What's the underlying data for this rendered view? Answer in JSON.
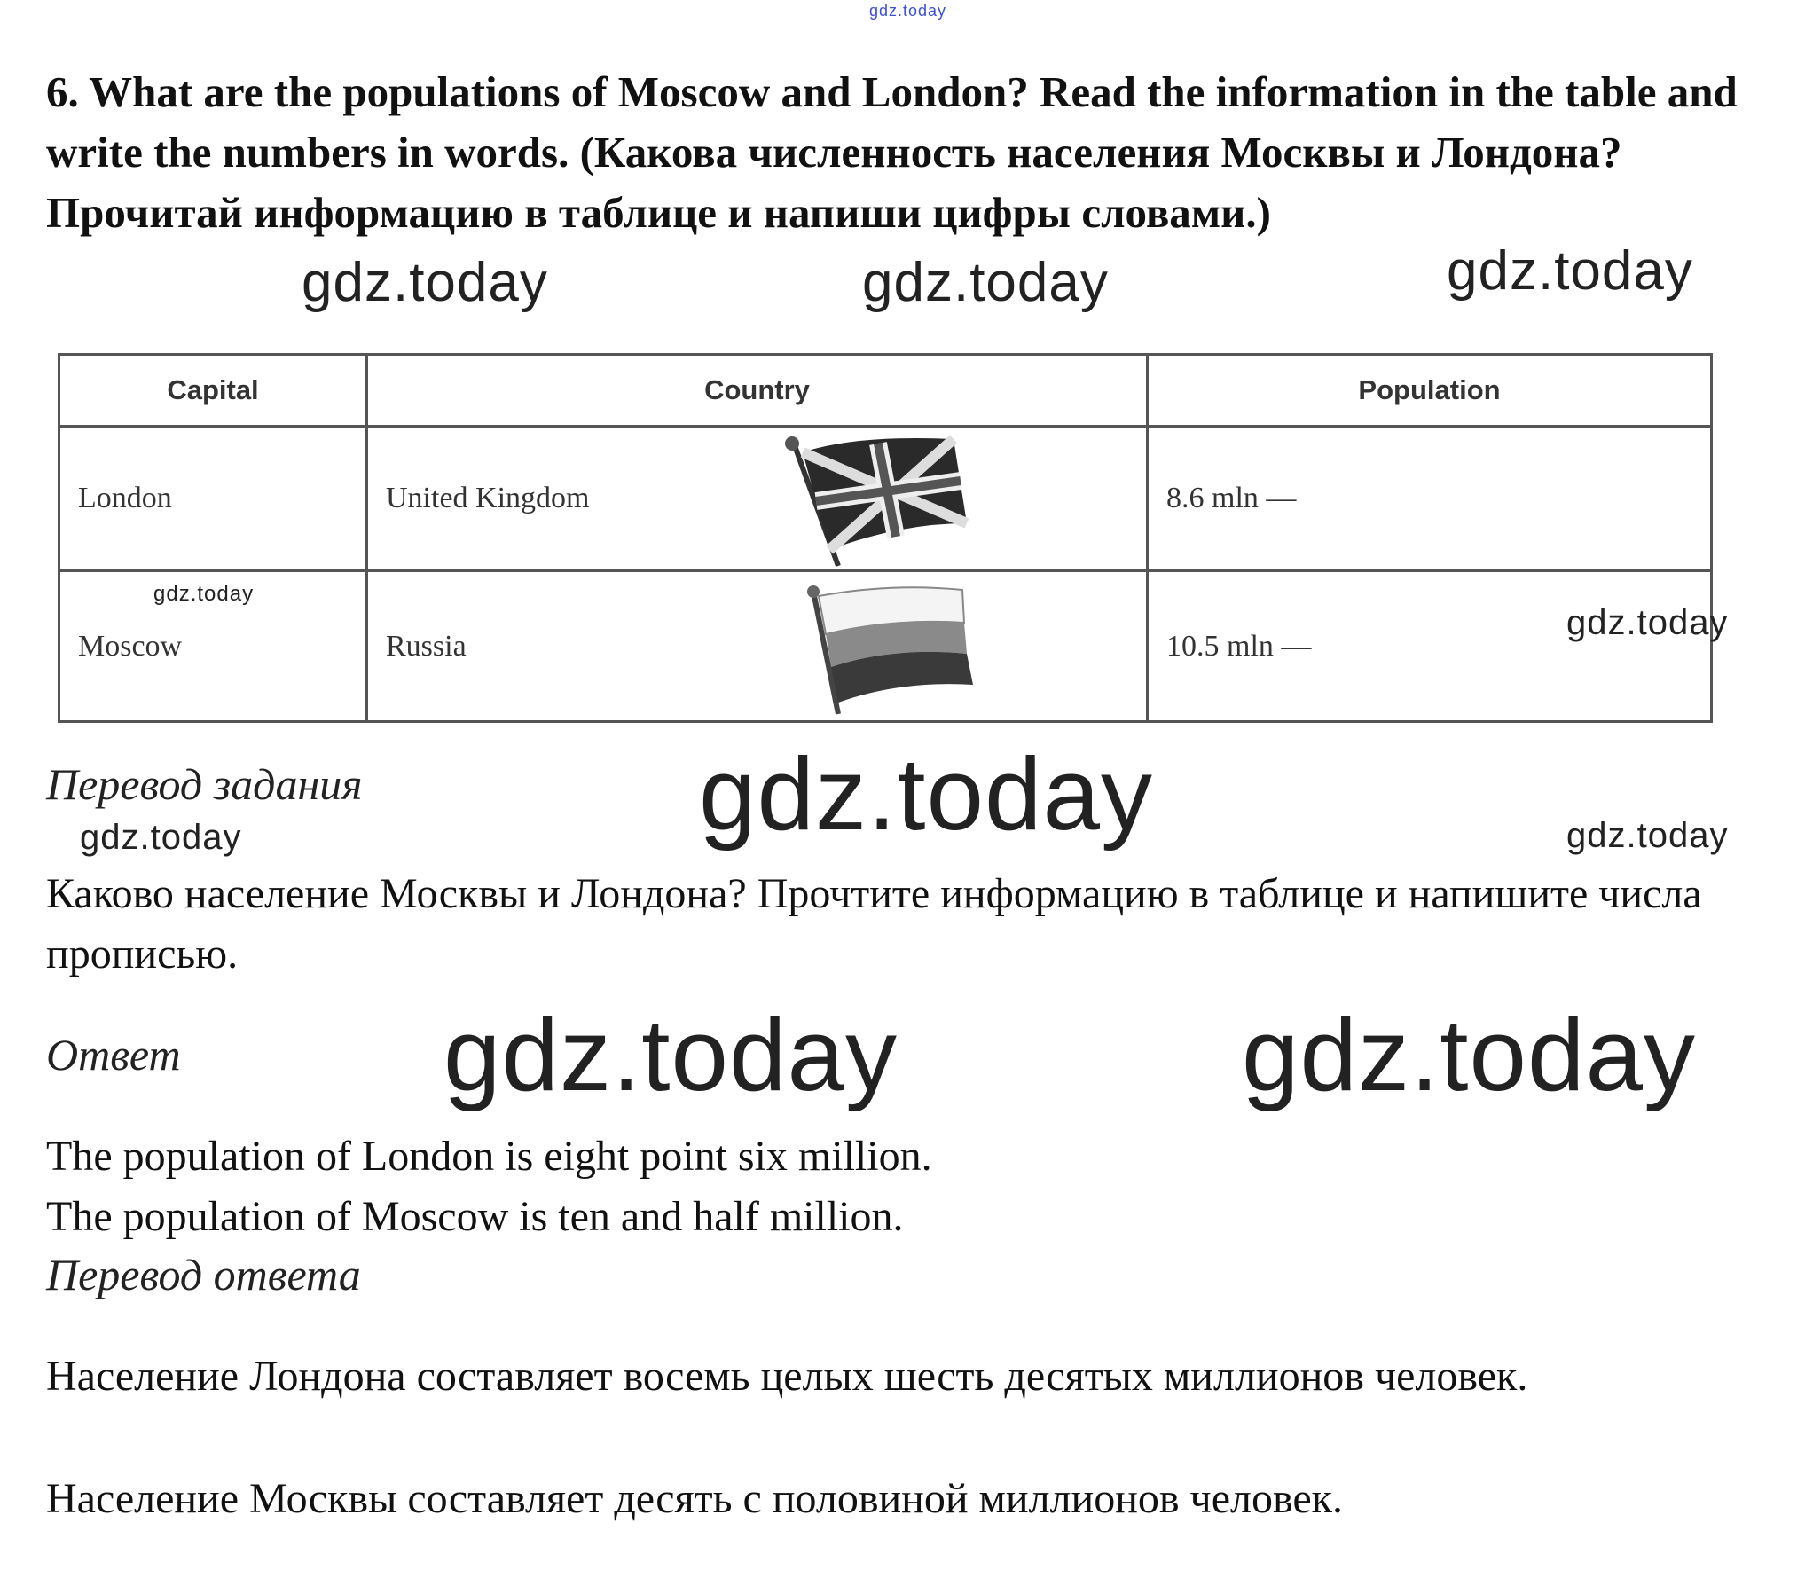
{
  "watermarks": {
    "top": "gdz.today",
    "text": "gdz.today"
  },
  "task": {
    "heading": "6. What are the populations of Moscow and London? Read the information in the table and write the numbers in words. (Какова численность населения Москвы и Лондона? Прочитай информацию в таблице и напиши цифры словами.)"
  },
  "table": {
    "headers": [
      "Capital",
      "Country",
      "Population"
    ],
    "rows": [
      {
        "capital": "London",
        "country": "United Kingdom",
        "population": "8.6 mln —",
        "flag": "uk-flag"
      },
      {
        "capital": "Moscow",
        "country": "Russia",
        "population": "10.5 mln —",
        "flag": "russia-flag"
      }
    ]
  },
  "translation": {
    "title": "Перевод задания",
    "text": "Каково население Москвы и Лондона? Прочтите информацию в таблице и напишите числа прописью."
  },
  "answer": {
    "title": "Ответ",
    "lines": [
      "The population of London is eight point six million.",
      "The population of Moscow is ten and half million."
    ]
  },
  "answer_translation": {
    "title": "Перевод ответа",
    "lines": [
      "Население Лондона составляет восемь целых шесть десятых миллионов человек.",
      "Население Москвы составляет десять с половиной миллионов человек."
    ]
  }
}
